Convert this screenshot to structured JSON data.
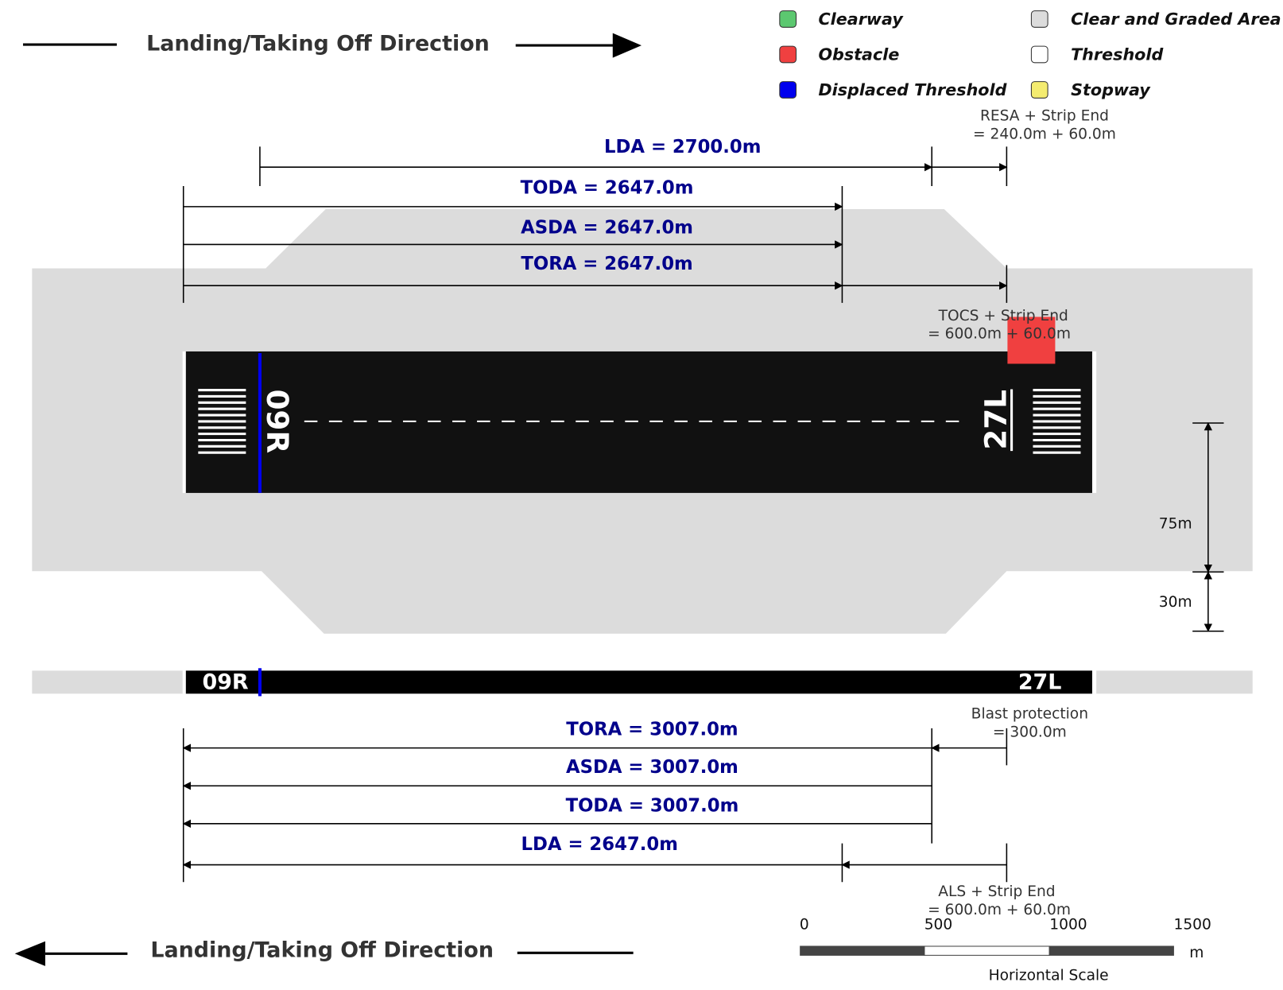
{
  "direction_top": "Landing/Taking Off Direction",
  "legend": [
    "Clearway",
    "Obstacle",
    "Displaced Threshold",
    "Clear and Graded Area",
    "Threshold",
    "Stopway"
  ],
  "top": {
    "distances": [
      "LDA = 2700.0m",
      "TODA = 2647.0m",
      "ASDA = 2647.0m",
      "TORA = 2647.0m"
    ],
    "resa": [
      "RESA + Strip End",
      "= 240.0m + 60.0m"
    ],
    "tocs": [
      "TOCS + Strip End",
      "= 600.0m + 60.0m"
    ],
    "runway_left": "09R",
    "runway_right": "27L",
    "width_runway": "75m",
    "width_strip": "30m"
  },
  "side": {
    "runway_left": "09R",
    "runway_right": "27L"
  },
  "bottom": {
    "distances": [
      "TORA = 3007.0m",
      "ASDA = 3007.0m",
      "TODA = 3007.0m",
      "LDA = 2647.0m"
    ],
    "blast": [
      "Blast protection",
      "= 300.0m"
    ],
    "als": [
      "ALS + Strip End",
      "= 600.0m + 60.0m"
    ]
  },
  "direction_bottom": "Landing/Taking Off Direction",
  "scale": {
    "ticks": [
      "0",
      "500",
      "1000",
      "1500"
    ],
    "unit": "m",
    "title": "Horizontal Scale"
  }
}
